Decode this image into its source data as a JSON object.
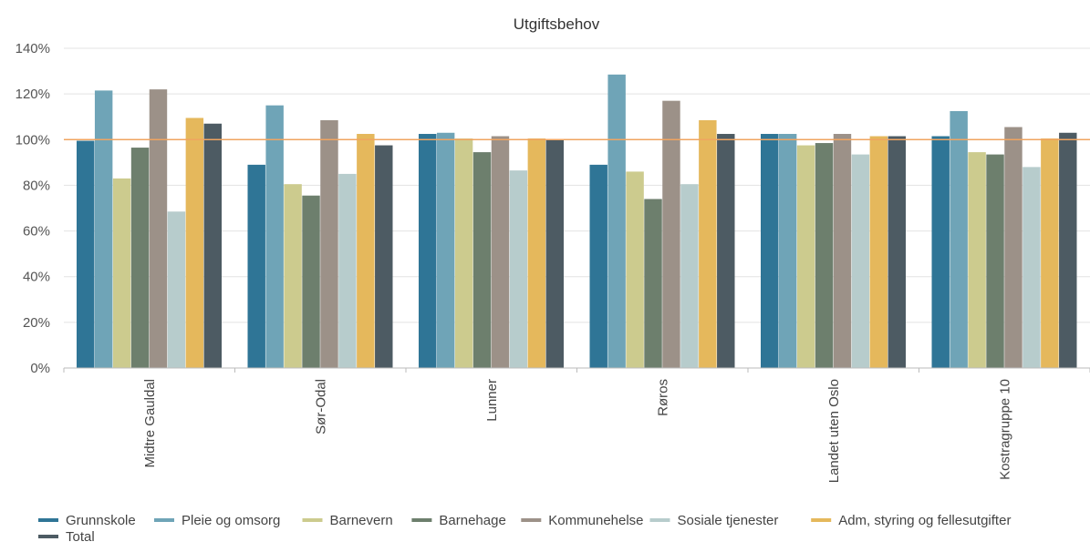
{
  "chart_data": {
    "type": "bar",
    "title": "Utgiftsbehov",
    "xlabel": "",
    "ylabel": "",
    "ylim": [
      0,
      140
    ],
    "yticks": [
      "0%",
      "20%",
      "40%",
      "60%",
      "80%",
      "100%",
      "120%",
      "140%"
    ],
    "ytick_values": [
      0,
      20,
      40,
      60,
      80,
      100,
      120,
      140
    ],
    "reference_line": 100,
    "reference_line_color": "#F0A460",
    "grid": true,
    "legend_position": "bottom-left",
    "categories": [
      "Midtre Gauldal",
      "Sør-Odal",
      "Lunner",
      "Røros",
      "Landet uten Oslo",
      "Kostragruppe 10"
    ],
    "series": [
      {
        "name": "Grunnskole",
        "color": "#2F7596",
        "values": [
          99.5,
          89,
          102.5,
          89,
          102.5,
          101.5
        ]
      },
      {
        "name": "Pleie og omsorg",
        "color": "#6FA4B7",
        "values": [
          121.5,
          115,
          103,
          128.5,
          102.5,
          112.5
        ]
      },
      {
        "name": "Barnevern",
        "color": "#CCCB8E",
        "values": [
          83,
          80.5,
          100.5,
          86,
          97.5,
          94.5
        ]
      },
      {
        "name": "Barnehage",
        "color": "#6D7F6D",
        "values": [
          96.5,
          75.5,
          94.5,
          74,
          98.5,
          93.5
        ]
      },
      {
        "name": "Kommunehelse",
        "color": "#9C9188",
        "values": [
          122,
          108.5,
          101.5,
          117,
          102.5,
          105.5
        ]
      },
      {
        "name": "Sosiale tjenester",
        "color": "#B7CCCC",
        "values": [
          68.5,
          85,
          86.5,
          80.5,
          93.5,
          88
        ]
      },
      {
        "name": "Adm, styring og fellesutgifter",
        "color": "#E5B85C",
        "values": [
          109.5,
          102.5,
          100.5,
          108.5,
          101.5,
          100.5
        ]
      },
      {
        "name": "Total",
        "color": "#4D5B63",
        "values": [
          107,
          97.5,
          100,
          102.5,
          101.5,
          103
        ]
      }
    ]
  }
}
